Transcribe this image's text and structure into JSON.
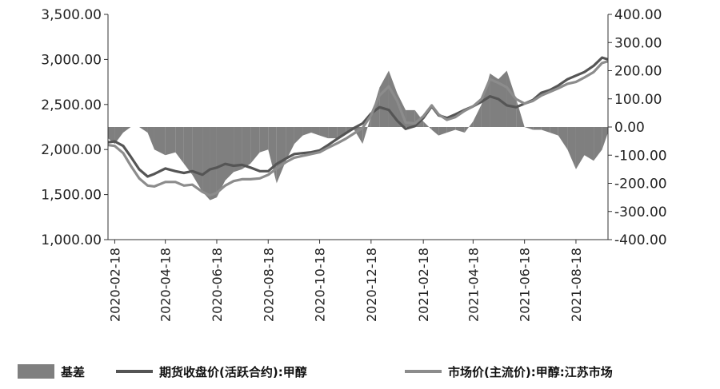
{
  "chart_data": {
    "type": "line",
    "legend": {
      "position": "bottom",
      "entries": [
        {
          "label": "基差",
          "kind": "area",
          "color": "#7f7f7f"
        },
        {
          "label": "期货收盘价(活跃合约):甲醇",
          "kind": "line",
          "color": "#555555"
        },
        {
          "label": "市场价(主流价):甲醇:江苏市场",
          "kind": "line",
          "color": "#8c8c8c"
        }
      ]
    },
    "y_left": {
      "min": 1000,
      "max": 3500,
      "ticks": [
        "1,000.00",
        "1,500.00",
        "2,000.00",
        "2,500.00",
        "3,000.00",
        "3,500.00"
      ],
      "tick_values": [
        1000,
        1500,
        2000,
        2500,
        3000,
        3500
      ]
    },
    "y_right": {
      "min": -400,
      "max": 400,
      "ticks": [
        "-400.00",
        "-300.00",
        "-200.00",
        "-100.00",
        "0.00",
        "100.00",
        "200.00",
        "300.00",
        "400.00"
      ],
      "tick_values": [
        -400,
        -300,
        -200,
        -100,
        0,
        100,
        200,
        300,
        400
      ]
    },
    "x": {
      "start": "2020-02-10",
      "end": "2021-09-25",
      "ticks": [
        "2020-02-18",
        "2020-04-18",
        "2020-06-18",
        "2020-08-18",
        "2020-10-18",
        "2020-12-18",
        "2021-02-18",
        "2021-04-18",
        "2021-06-18",
        "2021-08-18"
      ]
    },
    "series": [
      {
        "name": "期货收盘价(活跃合约):甲醇",
        "axis": "left",
        "points": [
          [
            "2020-02-10",
            2080
          ],
          [
            "2020-02-18",
            2090
          ],
          [
            "2020-02-28",
            2040
          ],
          [
            "2020-03-08",
            1920
          ],
          [
            "2020-03-18",
            1780
          ],
          [
            "2020-03-28",
            1700
          ],
          [
            "2020-04-05",
            1730
          ],
          [
            "2020-04-18",
            1790
          ],
          [
            "2020-04-30",
            1760
          ],
          [
            "2020-05-10",
            1740
          ],
          [
            "2020-05-20",
            1760
          ],
          [
            "2020-06-01",
            1720
          ],
          [
            "2020-06-10",
            1780
          ],
          [
            "2020-06-18",
            1800
          ],
          [
            "2020-06-28",
            1840
          ],
          [
            "2020-07-08",
            1820
          ],
          [
            "2020-07-18",
            1830
          ],
          [
            "2020-07-28",
            1800
          ],
          [
            "2020-08-08",
            1760
          ],
          [
            "2020-08-18",
            1760
          ],
          [
            "2020-08-28",
            1840
          ],
          [
            "2020-09-08",
            1900
          ],
          [
            "2020-09-18",
            1950
          ],
          [
            "2020-09-28",
            1960
          ],
          [
            "2020-10-08",
            1970
          ],
          [
            "2020-10-18",
            1990
          ],
          [
            "2020-10-28",
            2050
          ],
          [
            "2020-11-08",
            2120
          ],
          [
            "2020-11-18",
            2180
          ],
          [
            "2020-11-28",
            2240
          ],
          [
            "2020-12-08",
            2290
          ],
          [
            "2020-12-18",
            2400
          ],
          [
            "2020-12-28",
            2470
          ],
          [
            "2021-01-08",
            2440
          ],
          [
            "2021-01-18",
            2320
          ],
          [
            "2021-01-28",
            2230
          ],
          [
            "2021-02-08",
            2260
          ],
          [
            "2021-02-18",
            2350
          ],
          [
            "2021-02-28",
            2480
          ],
          [
            "2021-03-08",
            2380
          ],
          [
            "2021-03-18",
            2350
          ],
          [
            "2021-03-28",
            2390
          ],
          [
            "2021-04-08",
            2440
          ],
          [
            "2021-04-18",
            2480
          ],
          [
            "2021-04-28",
            2530
          ],
          [
            "2021-05-08",
            2590
          ],
          [
            "2021-05-18",
            2560
          ],
          [
            "2021-05-28",
            2490
          ],
          [
            "2021-06-08",
            2470
          ],
          [
            "2021-06-18",
            2510
          ],
          [
            "2021-06-28",
            2550
          ],
          [
            "2021-07-08",
            2630
          ],
          [
            "2021-07-18",
            2660
          ],
          [
            "2021-07-28",
            2710
          ],
          [
            "2021-08-08",
            2780
          ],
          [
            "2021-08-18",
            2820
          ],
          [
            "2021-08-28",
            2860
          ],
          [
            "2021-09-08",
            2930
          ],
          [
            "2021-09-18",
            3020
          ],
          [
            "2021-09-25",
            3000
          ]
        ]
      },
      {
        "name": "市场价(主流价):甲醇:江苏市场",
        "axis": "left",
        "points": [
          [
            "2020-02-10",
            2050
          ],
          [
            "2020-02-18",
            2040
          ],
          [
            "2020-02-28",
            1960
          ],
          [
            "2020-03-08",
            1820
          ],
          [
            "2020-03-18",
            1680
          ],
          [
            "2020-03-28",
            1600
          ],
          [
            "2020-04-05",
            1590
          ],
          [
            "2020-04-18",
            1640
          ],
          [
            "2020-04-30",
            1640
          ],
          [
            "2020-05-10",
            1600
          ],
          [
            "2020-05-20",
            1610
          ],
          [
            "2020-06-01",
            1530
          ],
          [
            "2020-06-10",
            1490
          ],
          [
            "2020-06-18",
            1520
          ],
          [
            "2020-06-28",
            1600
          ],
          [
            "2020-07-08",
            1650
          ],
          [
            "2020-07-18",
            1670
          ],
          [
            "2020-07-28",
            1670
          ],
          [
            "2020-08-08",
            1680
          ],
          [
            "2020-08-18",
            1720
          ],
          [
            "2020-08-28",
            1790
          ],
          [
            "2020-09-08",
            1860
          ],
          [
            "2020-09-18",
            1910
          ],
          [
            "2020-09-28",
            1930
          ],
          [
            "2020-10-08",
            1950
          ],
          [
            "2020-10-18",
            1970
          ],
          [
            "2020-10-28",
            2020
          ],
          [
            "2020-11-08",
            2070
          ],
          [
            "2020-11-18",
            2120
          ],
          [
            "2020-11-28",
            2180
          ],
          [
            "2020-12-08",
            2240
          ],
          [
            "2020-12-18",
            2380
          ],
          [
            "2020-12-28",
            2600
          ],
          [
            "2021-01-08",
            2700
          ],
          [
            "2021-01-18",
            2540
          ],
          [
            "2021-01-28",
            2300
          ],
          [
            "2021-02-08",
            2290
          ],
          [
            "2021-02-18",
            2370
          ],
          [
            "2021-02-28",
            2490
          ],
          [
            "2021-03-08",
            2390
          ],
          [
            "2021-03-18",
            2330
          ],
          [
            "2021-03-28",
            2360
          ],
          [
            "2021-04-08",
            2430
          ],
          [
            "2021-04-18",
            2480
          ],
          [
            "2021-04-28",
            2560
          ],
          [
            "2021-05-08",
            2780
          ],
          [
            "2021-05-18",
            2740
          ],
          [
            "2021-05-28",
            2690
          ],
          [
            "2021-06-08",
            2560
          ],
          [
            "2021-06-18",
            2510
          ],
          [
            "2021-06-28",
            2540
          ],
          [
            "2021-07-08",
            2600
          ],
          [
            "2021-07-18",
            2640
          ],
          [
            "2021-07-28",
            2680
          ],
          [
            "2021-08-08",
            2730
          ],
          [
            "2021-08-18",
            2750
          ],
          [
            "2021-08-28",
            2800
          ],
          [
            "2021-09-08",
            2860
          ],
          [
            "2021-09-18",
            2960
          ],
          [
            "2021-09-25",
            2980
          ]
        ]
      },
      {
        "name": "基差",
        "axis": "right",
        "type": "area",
        "points": [
          [
            "2020-02-10",
            -40
          ],
          [
            "2020-02-18",
            -60
          ],
          [
            "2020-02-28",
            -20
          ],
          [
            "2020-03-08",
            0
          ],
          [
            "2020-03-18",
            0
          ],
          [
            "2020-03-28",
            -20
          ],
          [
            "2020-04-05",
            -80
          ],
          [
            "2020-04-18",
            -100
          ],
          [
            "2020-04-30",
            -90
          ],
          [
            "2020-05-10",
            -130
          ],
          [
            "2020-05-20",
            -170
          ],
          [
            "2020-06-01",
            -230
          ],
          [
            "2020-06-10",
            -260
          ],
          [
            "2020-06-18",
            -250
          ],
          [
            "2020-06-28",
            -190
          ],
          [
            "2020-07-08",
            -160
          ],
          [
            "2020-07-18",
            -150
          ],
          [
            "2020-07-28",
            -130
          ],
          [
            "2020-08-08",
            -90
          ],
          [
            "2020-08-18",
            -80
          ],
          [
            "2020-08-28",
            -200
          ],
          [
            "2020-09-08",
            -120
          ],
          [
            "2020-09-18",
            -60
          ],
          [
            "2020-09-28",
            -30
          ],
          [
            "2020-10-08",
            -20
          ],
          [
            "2020-10-18",
            -30
          ],
          [
            "2020-10-28",
            -40
          ],
          [
            "2020-11-08",
            -40
          ],
          [
            "2020-11-18",
            -20
          ],
          [
            "2020-11-28",
            -10
          ],
          [
            "2020-12-08",
            -60
          ],
          [
            "2020-12-18",
            40
          ],
          [
            "2020-12-28",
            140
          ],
          [
            "2021-01-08",
            200
          ],
          [
            "2021-01-18",
            120
          ],
          [
            "2021-01-28",
            60
          ],
          [
            "2021-02-08",
            60
          ],
          [
            "2021-02-18",
            20
          ],
          [
            "2021-02-28",
            -10
          ],
          [
            "2021-03-08",
            -30
          ],
          [
            "2021-03-18",
            -20
          ],
          [
            "2021-03-28",
            -10
          ],
          [
            "2021-04-08",
            -20
          ],
          [
            "2021-04-18",
            20
          ],
          [
            "2021-04-28",
            80
          ],
          [
            "2021-05-08",
            190
          ],
          [
            "2021-05-18",
            170
          ],
          [
            "2021-05-28",
            200
          ],
          [
            "2021-06-08",
            100
          ],
          [
            "2021-06-18",
            0
          ],
          [
            "2021-06-28",
            -10
          ],
          [
            "2021-07-08",
            -10
          ],
          [
            "2021-07-18",
            -20
          ],
          [
            "2021-07-28",
            -30
          ],
          [
            "2021-08-08",
            -80
          ],
          [
            "2021-08-18",
            -150
          ],
          [
            "2021-08-28",
            -100
          ],
          [
            "2021-09-08",
            -120
          ],
          [
            "2021-09-18",
            -80
          ],
          [
            "2021-09-25",
            -20
          ]
        ]
      }
    ],
    "grid": false
  }
}
